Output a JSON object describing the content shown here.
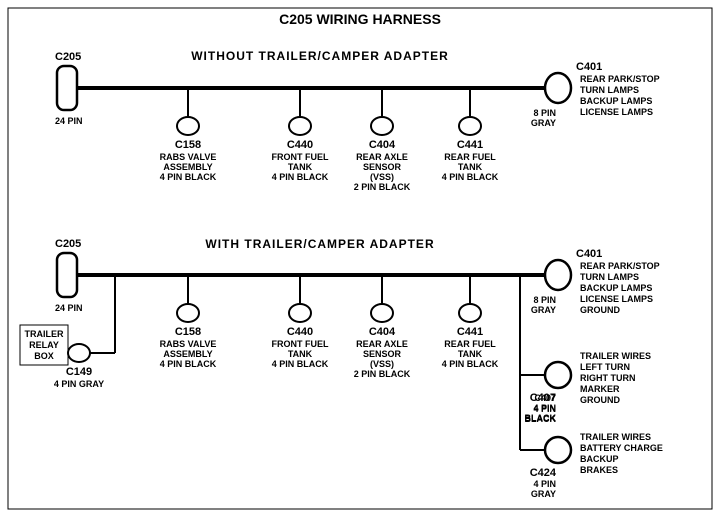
{
  "title": "C205 WIRING HARNESS",
  "section1": {
    "header": "WITHOUT  TRAILER/CAMPER  ADAPTER",
    "left": {
      "ref": "C205",
      "pin": "24 PIN"
    },
    "right": {
      "ref": "C401",
      "pin": "8 PIN\nGRAY",
      "desc": [
        "REAR PARK/STOP",
        "TURN LAMPS",
        "BACKUP LAMPS",
        "LICENSE LAMPS"
      ]
    },
    "taps": [
      {
        "ref": "C158",
        "desc": [
          "RABS VALVE",
          "ASSEMBLY",
          "4 PIN BLACK"
        ]
      },
      {
        "ref": "C440",
        "desc": [
          "FRONT FUEL",
          "TANK",
          "4 PIN BLACK"
        ]
      },
      {
        "ref": "C404",
        "desc": [
          "REAR AXLE",
          "SENSOR",
          "(VSS)",
          "2 PIN BLACK"
        ]
      },
      {
        "ref": "C441",
        "desc": [
          "REAR FUEL",
          "TANK",
          "4 PIN BLACK"
        ]
      }
    ]
  },
  "section2": {
    "header": "WITH TRAILER/CAMPER  ADAPTER",
    "left": {
      "ref": "C205",
      "pin": "24 PIN"
    },
    "relay": {
      "ref": "C149",
      "pin": "4 PIN GRAY",
      "box": "TRAILER\nRELAY\nBOX"
    },
    "right": {
      "ref": "C401",
      "pin": "8 PIN\nGRAY",
      "desc": [
        "REAR PARK/STOP",
        "TURN LAMPS",
        "BACKUP LAMPS",
        "LICENSE LAMPS",
        "GROUND"
      ]
    },
    "c407": {
      "ref": "C407",
      "pin": "4 PIN\nBLACK",
      "desc": [
        "TRAILER WIRES",
        " LEFT TURN",
        "RIGHT TURN",
        "MARKER",
        "GROUND"
      ]
    },
    "c424": {
      "ref": "C424",
      "pin": "4 PIN\nGRAY",
      "desc": [
        "TRAILER  WIRES",
        "BATTERY CHARGE",
        "BACKUP",
        "BRAKES"
      ]
    },
    "taps": [
      {
        "ref": "C158",
        "desc": [
          "RABS VALVE",
          "ASSEMBLY",
          "4 PIN BLACK"
        ]
      },
      {
        "ref": "C440",
        "desc": [
          "FRONT FUEL",
          "TANK",
          "4 PIN BLACK"
        ]
      },
      {
        "ref": "C404",
        "desc": [
          "REAR AXLE",
          "SENSOR",
          "(VSS)",
          "2 PIN BLACK"
        ]
      },
      {
        "ref": "C441",
        "desc": [
          "REAR FUEL",
          "TANK",
          "4 PIN BLACK"
        ]
      }
    ]
  },
  "style": {
    "bg": "#ffffff",
    "stroke": "#000000",
    "trunk_width": 4,
    "tap_width": 2,
    "border_width": 1
  }
}
